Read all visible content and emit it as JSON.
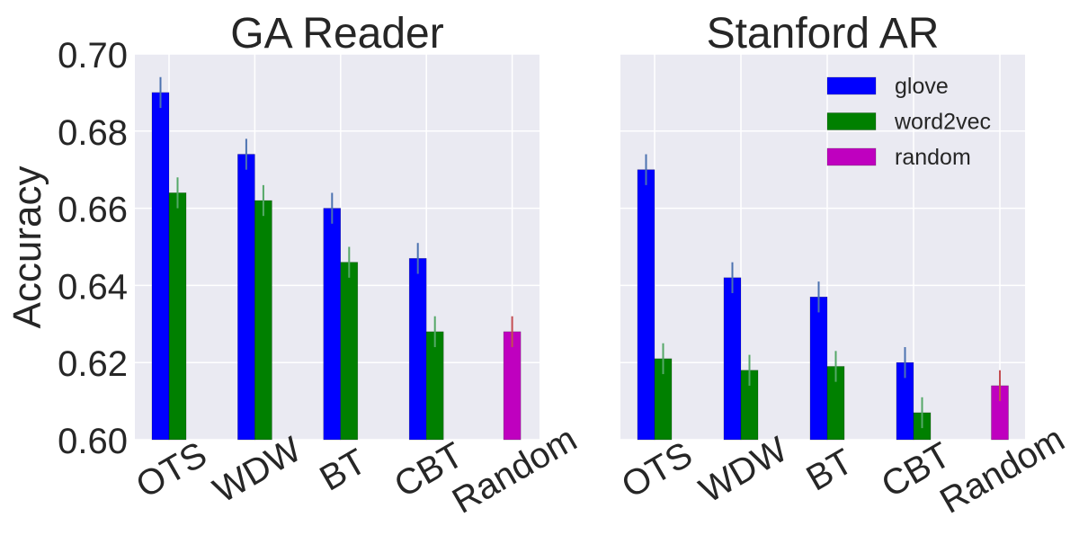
{
  "figure": {
    "ylabel": "Accuracy",
    "legend": {
      "placement": "top-right (right panel)",
      "entries": [
        {
          "label": "glove",
          "color": "#0000ff"
        },
        {
          "label": "word2vec",
          "color": "#008000"
        },
        {
          "label": "random",
          "color": "#bf00bf"
        }
      ]
    },
    "style": {
      "background": "#eaeaf2",
      "grid": true,
      "grid_color": "#ffffff"
    }
  },
  "chart_data": [
    {
      "type": "bar",
      "title": "GA Reader",
      "xlabel": "",
      "ylabel": "Accuracy",
      "ylim": [
        0.6,
        0.7
      ],
      "yticks": [
        "0.60",
        "0.62",
        "0.64",
        "0.66",
        "0.68",
        "0.70"
      ],
      "categories": [
        "OTS",
        "WDW",
        "BT",
        "CBT",
        "Random"
      ],
      "series": [
        {
          "name": "glove",
          "color": "#0000ff",
          "err_color": "#4c72b0",
          "values": [
            0.69,
            0.674,
            0.66,
            0.647,
            null
          ],
          "errors": [
            0.004,
            0.004,
            0.004,
            0.004,
            null
          ]
        },
        {
          "name": "word2vec",
          "color": "#008000",
          "err_color": "#55a868",
          "values": [
            0.664,
            0.662,
            0.646,
            0.628,
            null
          ],
          "errors": [
            0.004,
            0.004,
            0.004,
            0.004,
            null
          ]
        },
        {
          "name": "random",
          "color": "#bf00bf",
          "err_color": "#c44e52",
          "values": [
            null,
            null,
            null,
            null,
            0.628
          ],
          "errors": [
            null,
            null,
            null,
            null,
            0.004
          ]
        }
      ]
    },
    {
      "type": "bar",
      "title": "Stanford AR",
      "xlabel": "",
      "ylabel": "",
      "ylim": [
        0.6,
        0.7
      ],
      "yticks": [],
      "categories": [
        "OTS",
        "WDW",
        "BT",
        "CBT",
        "Random"
      ],
      "series": [
        {
          "name": "glove",
          "color": "#0000ff",
          "err_color": "#4c72b0",
          "values": [
            0.67,
            0.642,
            0.637,
            0.62,
            null
          ],
          "errors": [
            0.004,
            0.004,
            0.004,
            0.004,
            null
          ]
        },
        {
          "name": "word2vec",
          "color": "#008000",
          "err_color": "#55a868",
          "values": [
            0.621,
            0.618,
            0.619,
            0.607,
            null
          ],
          "errors": [
            0.004,
            0.004,
            0.004,
            0.004,
            null
          ]
        },
        {
          "name": "random",
          "color": "#bf00bf",
          "err_color": "#c44e52",
          "values": [
            null,
            null,
            null,
            null,
            0.614
          ],
          "errors": [
            null,
            null,
            null,
            null,
            0.004
          ]
        }
      ]
    }
  ]
}
